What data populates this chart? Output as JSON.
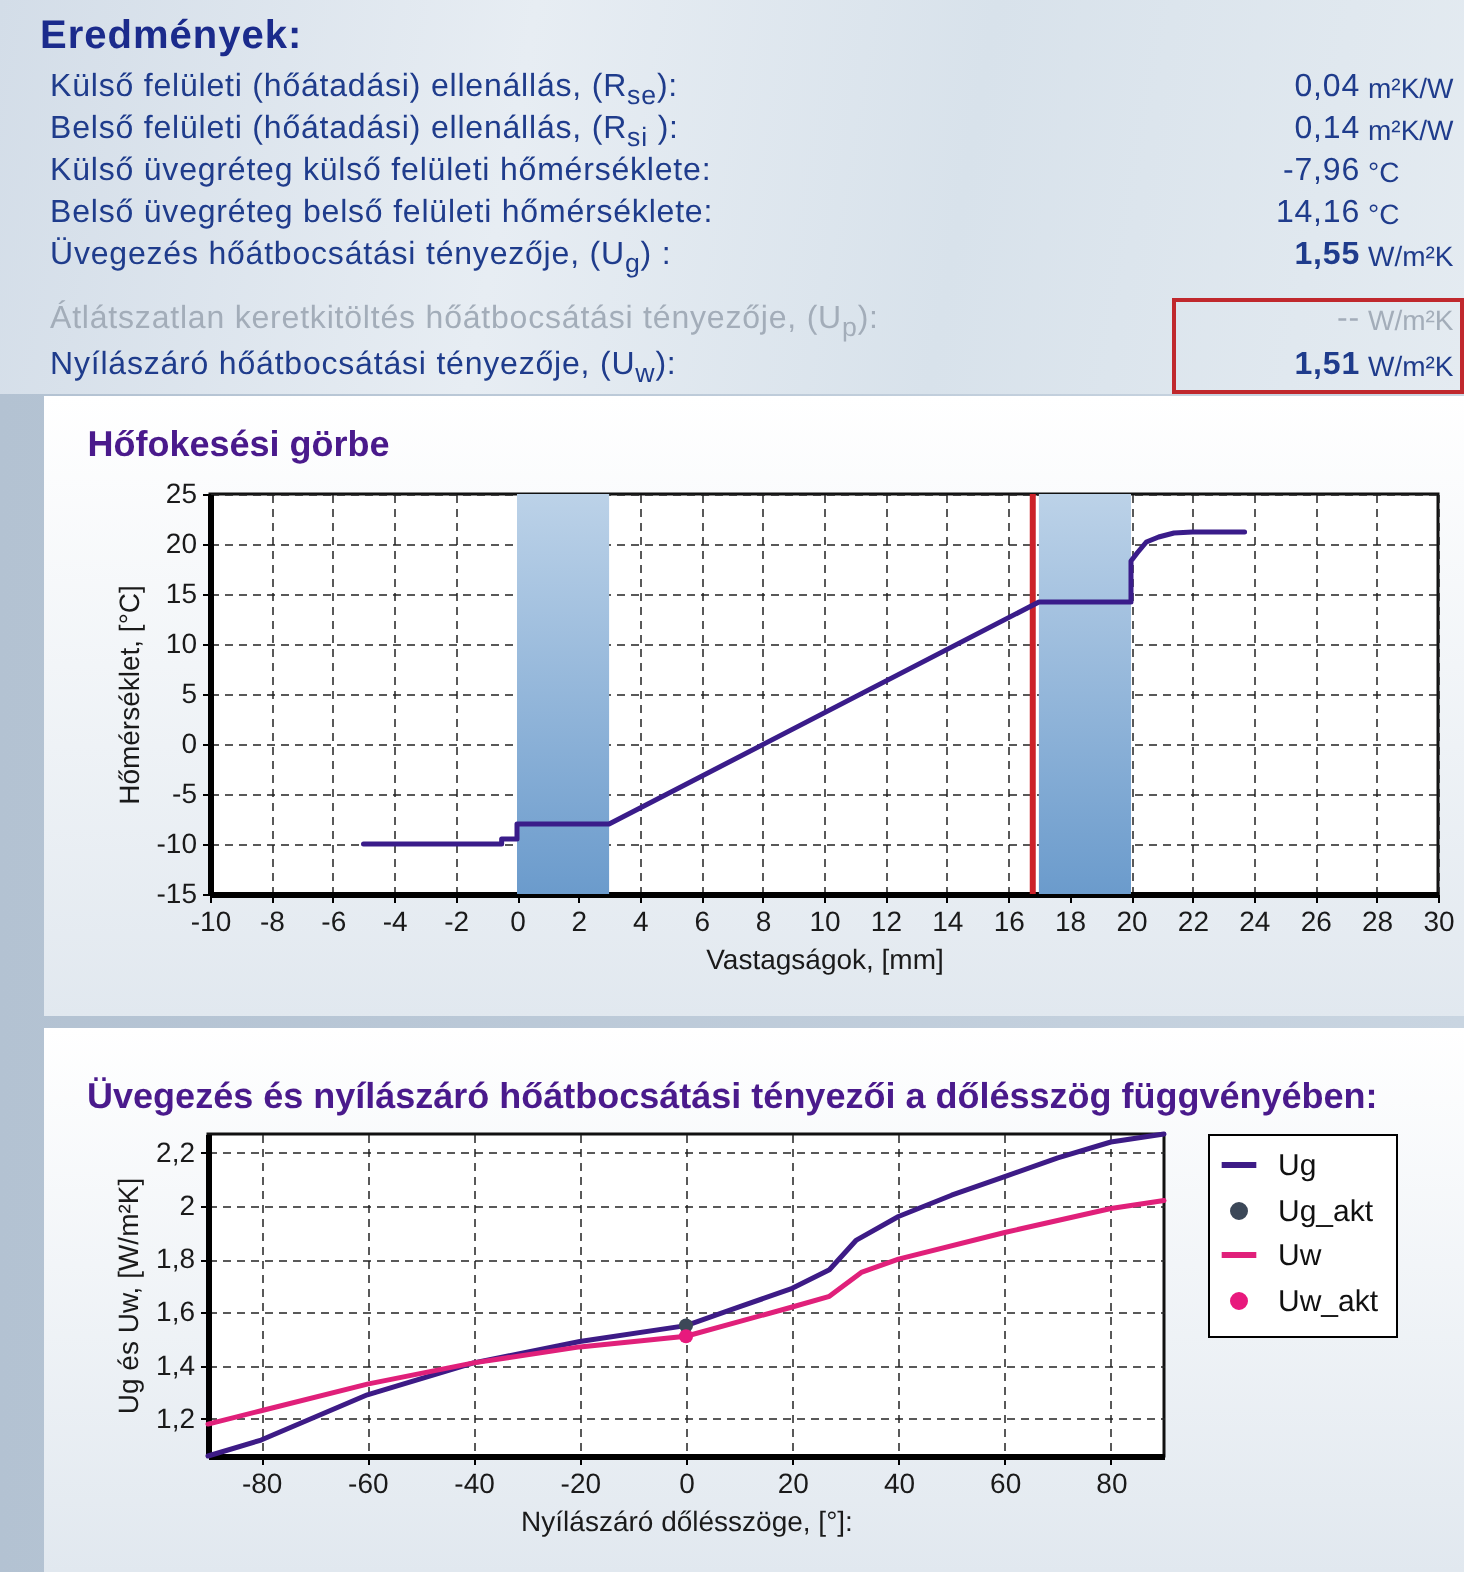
{
  "chart_data": [
    {
      "type": "other",
      "title": "Eredmények:",
      "annotations": [
        "Külső felületi (hőátadási) ellenállás, (R$_{se}$):",
        "0,04",
        "m²K/W",
        "Belső felületi (hőátadási) ellenállás, (R$_{si}$ ):",
        "0,14",
        "m²K/W",
        "Külső üvegréteg külső felületi hőmérséklete:",
        "-7,96",
        "°C",
        "Belső üvegréteg belső felületi hőmérséklete:",
        "14,16",
        "°C",
        "Üvegezés hőátbocsátási tényezője, (U$_{g}$) :",
        "1,55",
        "W/m²K",
        "Átlátszatlan keretkitöltés hőátbocsátási tényezője, (U$_{p}$):",
        "--",
        "W/m²K",
        "Nyílászáró hőátbocsátási tényezője, (U$_{w}$):",
        "1,51",
        "W/m²K"
      ]
    },
    {
      "type": "line",
      "title": "Hőfokesési görbe",
      "xlabel": "Vastagságok, [mm]",
      "ylabel": "Hőmérséklet, [°C]",
      "xlim": [
        -10,
        30
      ],
      "xticks": [
        -10,
        -8,
        -6,
        -4,
        -2,
        0,
        2,
        4,
        6,
        8,
        10,
        12,
        14,
        16,
        18,
        20,
        22,
        24,
        26,
        28,
        30
      ],
      "ylim": [
        -15,
        25
      ],
      "yticks": [
        -15,
        -10,
        -5,
        0,
        5,
        10,
        15,
        20,
        25
      ],
      "grid": true,
      "bands": [
        {
          "axis": "x",
          "from": 0,
          "to": 3,
          "color": "#6b9bcc"
        },
        {
          "axis": "x",
          "from": 17,
          "to": 20,
          "color": "#6b9bcc"
        }
      ],
      "ref_lines": [
        {
          "axis": "x",
          "value": 16.8,
          "color": "#cc2229"
        }
      ],
      "series": [
        {
          "color": "#3a1c8a",
          "x": [
            -5,
            -0.5,
            -0.5,
            0,
            0,
            3,
            17,
            20,
            20,
            20.2,
            20.5,
            20.9,
            21.4,
            22,
            23.7
          ],
          "values": [
            -10,
            -10,
            -9.5,
            -9.5,
            -8,
            -8,
            14.2,
            14.2,
            18.3,
            19.1,
            20.2,
            20.7,
            21.1,
            21.2,
            21.2
          ]
        }
      ]
    },
    {
      "type": "line",
      "title": "Üvegezés és nyílászáró hőátbocsátási tényezői a dőlésszög függvényében:",
      "xlabel": "Nyílászáró dőlésszöge, [°]:",
      "ylabel": "Ug és Uw, [W/m²K]",
      "xlim": [
        -90,
        90
      ],
      "xticks": [
        -80,
        -60,
        -40,
        -20,
        0,
        20,
        40,
        60,
        80
      ],
      "ylim": [
        1.06,
        2.27
      ],
      "yticks": [
        {
          "value": 1.2,
          "label": "1,2"
        },
        {
          "value": 1.4,
          "label": "1,4"
        },
        {
          "value": 1.6,
          "label": "1,6"
        },
        {
          "value": 1.8,
          "label": "1,8"
        },
        2,
        {
          "value": 2.2,
          "label": "2,2"
        }
      ],
      "grid": true,
      "legend": "right",
      "series": [
        {
          "name": "Ug",
          "color": "#3d1b86",
          "x": [
            -90,
            -80,
            -60,
            -40,
            -20,
            0,
            10,
            20,
            27,
            32,
            40,
            50,
            60,
            70,
            80,
            90
          ],
          "values": [
            1.06,
            1.12,
            1.29,
            1.41,
            1.49,
            1.55,
            1.62,
            1.69,
            1.76,
            1.87,
            1.96,
            2.04,
            2.11,
            2.18,
            2.24,
            2.27
          ]
        },
        {
          "name": "Ug_akt",
          "type": "scatter",
          "marker": "circle",
          "color": "#3c4858",
          "x": [
            0
          ],
          "values": [
            1.55
          ]
        },
        {
          "name": "Uw",
          "color": "#e0207a",
          "x": [
            -90,
            -80,
            -60,
            -40,
            -20,
            0,
            20,
            27,
            33,
            40,
            60,
            80,
            90
          ],
          "values": [
            1.18,
            1.23,
            1.33,
            1.41,
            1.47,
            1.51,
            1.62,
            1.66,
            1.75,
            1.8,
            1.9,
            1.99,
            2.02
          ]
        },
        {
          "name": "Uw_akt",
          "type": "scatter",
          "marker": "circle",
          "color": "#e8197d",
          "x": [
            0
          ],
          "values": [
            1.51
          ]
        }
      ]
    }
  ]
}
